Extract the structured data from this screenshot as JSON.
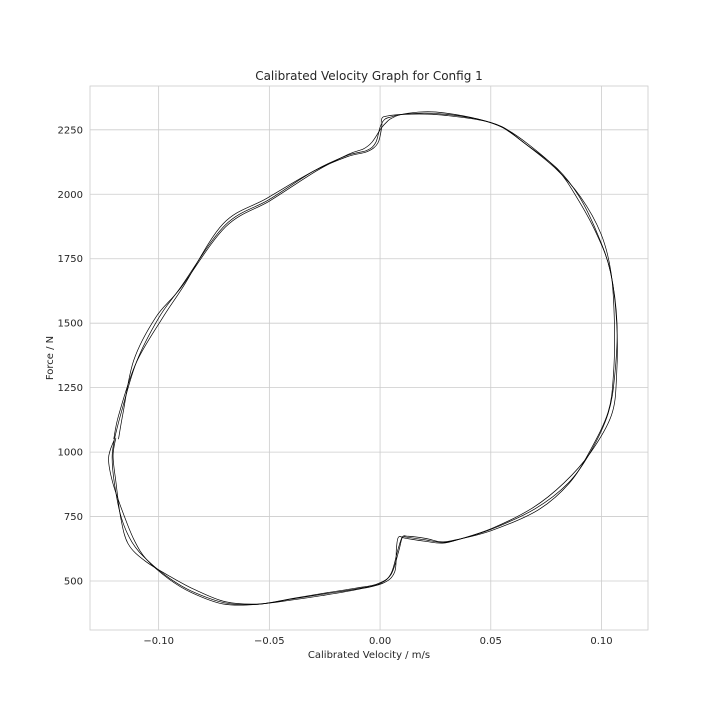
{
  "chart_data": {
    "type": "line",
    "title": "Calibrated Velocity Graph for Config 1",
    "xlabel": "Calibrated Velocity / m/s",
    "ylabel": "Force / N",
    "xlim": [
      -0.131,
      0.121
    ],
    "ylim": [
      310,
      2420
    ],
    "x_ticks": [
      -0.1,
      -0.05,
      0.0,
      0.05,
      0.1
    ],
    "x_tick_labels": [
      "−0.10",
      "−0.05",
      "0.00",
      "0.05",
      "0.10"
    ],
    "y_ticks": [
      500,
      750,
      1000,
      1250,
      1500,
      1750,
      2000,
      2250
    ],
    "y_tick_labels": [
      "500",
      "750",
      "1000",
      "1250",
      "1500",
      "1750",
      "2000",
      "2250"
    ],
    "grid": true,
    "legend": "none",
    "line_color": "#000000",
    "series": [
      {
        "x": [
          -0.12,
          -0.117,
          -0.11,
          -0.1,
          -0.09,
          -0.07,
          -0.05,
          -0.03,
          -0.015,
          -0.006,
          -0.002,
          0.0,
          0.002,
          0.005,
          0.01,
          0.02,
          0.03,
          0.045,
          0.055,
          0.065,
          0.08,
          0.09,
          0.098,
          0.104,
          0.107,
          0.106,
          0.103,
          0.095,
          0.085,
          0.07,
          0.05,
          0.035,
          0.028,
          0.02,
          0.012,
          0.01,
          0.008,
          0.005,
          0.0,
          -0.01,
          -0.025,
          -0.04,
          -0.055,
          -0.07,
          -0.085,
          -0.095,
          -0.105,
          -0.112,
          -0.117,
          -0.12,
          -0.121,
          -0.12
        ],
        "y": [
          1050,
          1150,
          1350,
          1520,
          1640,
          1880,
          1980,
          2090,
          2150,
          2170,
          2200,
          2260,
          2290,
          2300,
          2310,
          2315,
          2310,
          2290,
          2260,
          2200,
          2100,
          1990,
          1850,
          1700,
          1500,
          1300,
          1150,
          1000,
          880,
          780,
          700,
          660,
          650,
          660,
          670,
          670,
          620,
          530,
          490,
          470,
          450,
          430,
          410,
          415,
          460,
          510,
          580,
          650,
          750,
          880,
          980,
          1050
        ]
      }
    ]
  }
}
